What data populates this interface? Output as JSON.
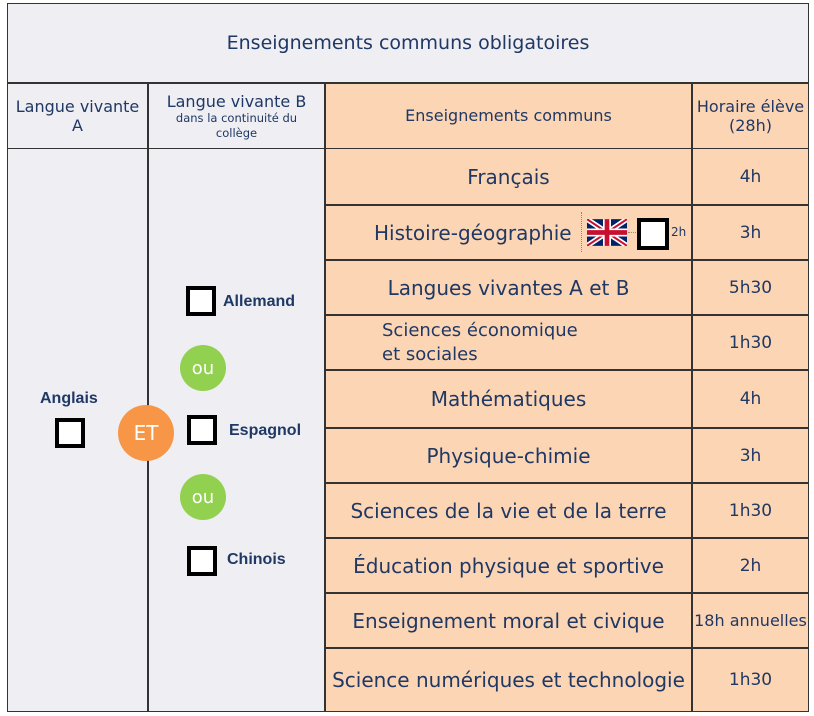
{
  "title": "Enseignements communs obligatoires",
  "headers": {
    "lv_a": "Langue vivante A",
    "lv_b_title": "Langue vivante B",
    "lv_b_sub": "dans la continuité du collège",
    "subjects": "Enseignements communs",
    "hours_line1": "Horaire élève",
    "hours_line2": "(28h)"
  },
  "lv_a_choice": "Anglais",
  "connector_et": "ET",
  "connector_ou": "ou",
  "lv_b_choices": [
    "Allemand",
    "Espagnol",
    "Chinois"
  ],
  "rows": [
    {
      "subject": "Français",
      "hours": "4h"
    },
    {
      "subject": "Histoire-géographie",
      "hours": "3h"
    },
    {
      "subject": "Langues vivantes A et B",
      "hours": "5h30"
    },
    {
      "subject": "Sciences économique\net sociales",
      "hours": "1h30"
    },
    {
      "subject": "Mathématiques",
      "hours": "4h"
    },
    {
      "subject": "Physique-chimie",
      "hours": "3h"
    },
    {
      "subject": "Sciences de la vie et de la terre",
      "hours": "1h30"
    },
    {
      "subject": "Éducation physique et sportive",
      "hours": "2h"
    },
    {
      "subject": "Enseignement moral et civique",
      "hours": "18h annuelles"
    },
    {
      "subject": "Science numériques et technologie",
      "hours": "1h30"
    }
  ],
  "euro_option_hours": "2h",
  "flag_icon": "uk-flag-icon"
}
